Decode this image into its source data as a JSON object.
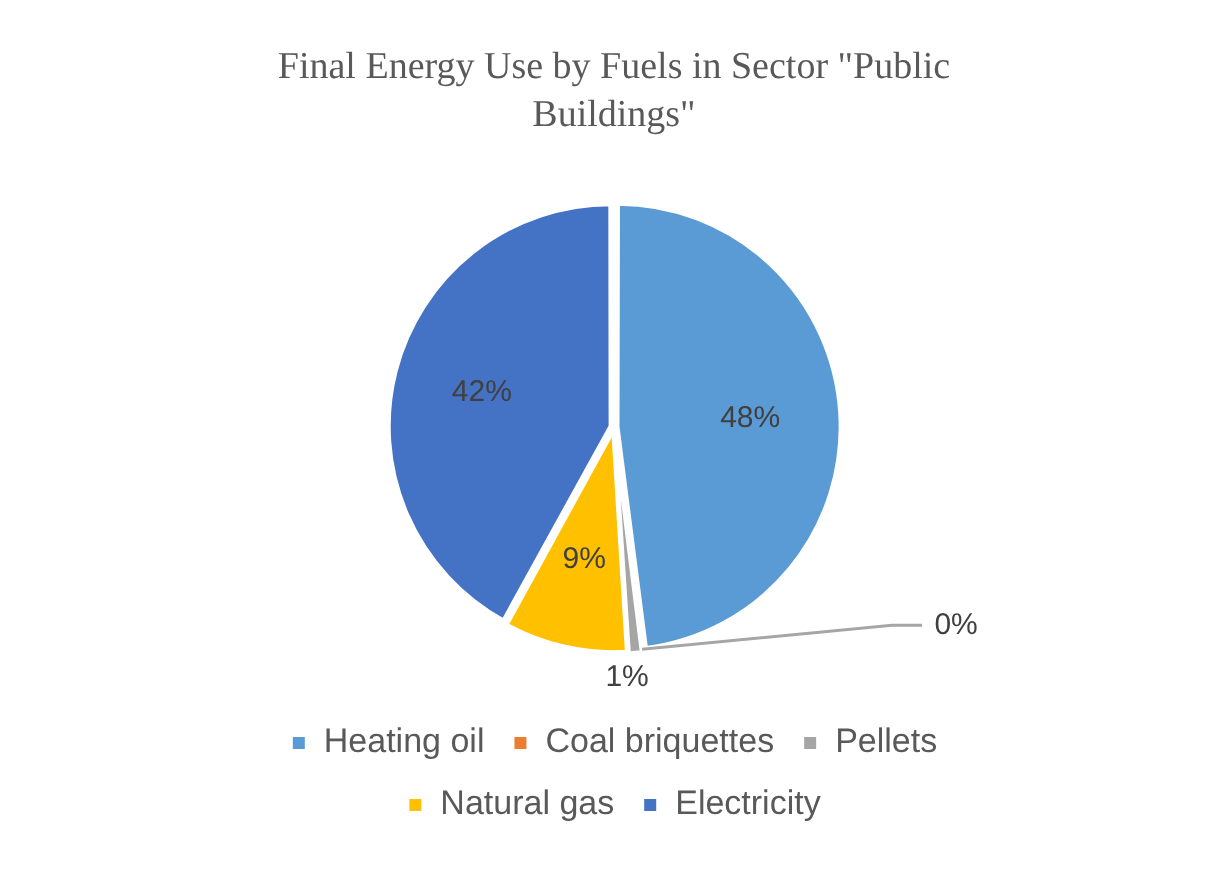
{
  "chart_data": {
    "type": "pie",
    "title": "Final Energy Use by Fuels in Sector \"Public Buildings\"",
    "categories": [
      "Heating oil",
      "Coal briquettes",
      "Pellets",
      "Natural gas",
      "Electricity"
    ],
    "values": [
      48,
      0,
      1,
      9,
      42
    ],
    "colors": [
      "#5b9bd5",
      "#ed7d31",
      "#a5a5a5",
      "#ffc000",
      "#4472c4"
    ],
    "value_labels": [
      "48%",
      "0%",
      "1%",
      "9%",
      "42%"
    ],
    "legend": "bottom"
  }
}
